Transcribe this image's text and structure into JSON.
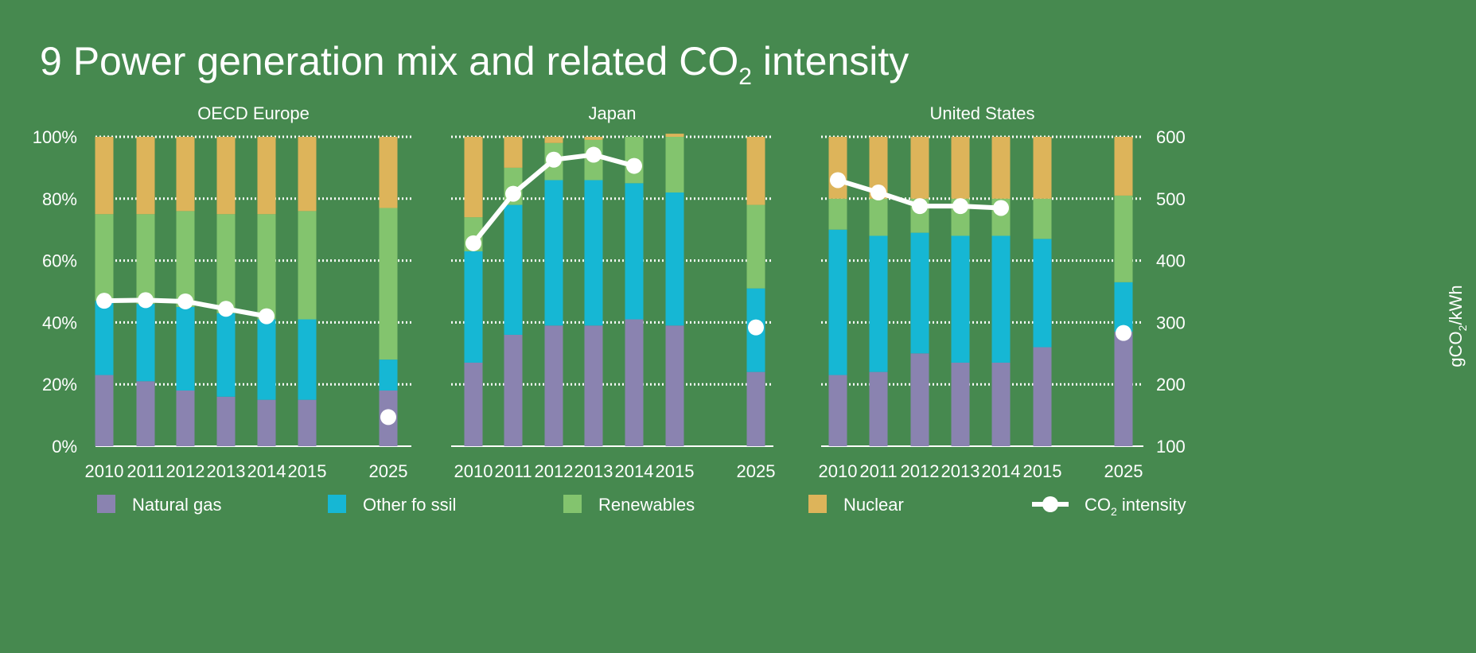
{
  "title": {
    "main": "9 Power generation mix and related CO",
    "sub": "2",
    "tail": " intensity"
  },
  "colors": {
    "background": "#46894f",
    "natural_gas": "#8a83b0",
    "other_fossil": "#16b7d4",
    "renewables": "#83c46e",
    "nuclear": "#ddb45a",
    "co2_intensity": "#ffffff",
    "text": "#ffffff"
  },
  "y_axis_left": {
    "ticks": [
      "0%",
      "20%",
      "40%",
      "60%",
      "80%",
      "100%"
    ]
  },
  "y_axis_right": {
    "ticks": [
      "100",
      "200",
      "300",
      "400",
      "500",
      "600"
    ],
    "label_main": "gCO",
    "label_sub": "2",
    "label_tail": "/kWh"
  },
  "legend": [
    {
      "key": "natural_gas",
      "label": "Natural gas",
      "type": "square"
    },
    {
      "key": "other_fossil",
      "label": "Other fo ssil",
      "type": "square"
    },
    {
      "key": "renewables",
      "label": "Renewables",
      "type": "square"
    },
    {
      "key": "nuclear",
      "label": "Nuclear",
      "type": "square"
    },
    {
      "key": "co2_intensity",
      "label_main": "CO",
      "label_sub": "2",
      "label_tail": " intensity",
      "type": "line"
    }
  ],
  "chart_data": [
    {
      "type": "bar",
      "stacked": true,
      "title": "OECD Europe",
      "categories": [
        "2010",
        "2011",
        "2012",
        "2013",
        "2014",
        "2015",
        "2025"
      ],
      "ylim": [
        0,
        100
      ],
      "y2lim": [
        100,
        600
      ],
      "series": [
        {
          "name": "Natural gas",
          "values": [
            23,
            21,
            18,
            16,
            15,
            15,
            18
          ]
        },
        {
          "name": "Other fossil",
          "values": [
            24,
            25,
            27,
            27,
            26,
            26,
            10
          ]
        },
        {
          "name": "Renewables",
          "values": [
            28,
            29,
            31,
            32,
            34,
            35,
            49
          ]
        },
        {
          "name": "Nuclear",
          "values": [
            25,
            25,
            24,
            25,
            25,
            24,
            23
          ]
        }
      ],
      "line": {
        "name": "CO2 intensity",
        "values": [
          335,
          336,
          334,
          322,
          310,
          null,
          147
        ]
      }
    },
    {
      "type": "bar",
      "stacked": true,
      "title": "Japan",
      "categories": [
        "2010",
        "2011",
        "2012",
        "2013",
        "2014",
        "2015",
        "2025"
      ],
      "ylim": [
        0,
        100
      ],
      "y2lim": [
        100,
        600
      ],
      "series": [
        {
          "name": "Natural gas",
          "values": [
            27,
            36,
            39,
            39,
            41,
            39,
            24
          ]
        },
        {
          "name": "Other fossil",
          "values": [
            36,
            42,
            47,
            47,
            44,
            43,
            27
          ]
        },
        {
          "name": "Renewables",
          "values": [
            11,
            12,
            12,
            13,
            15,
            18,
            27
          ]
        },
        {
          "name": "Nuclear",
          "values": [
            26,
            10,
            2,
            1,
            0,
            1,
            22
          ]
        }
      ],
      "line": {
        "name": "CO2 intensity",
        "values": [
          428,
          508,
          563,
          571,
          553,
          null,
          292
        ]
      }
    },
    {
      "type": "bar",
      "stacked": true,
      "title": "United States",
      "categories": [
        "2010",
        "2011",
        "2012",
        "2013",
        "2014",
        "2015",
        "2025"
      ],
      "ylim": [
        0,
        100
      ],
      "y2lim": [
        100,
        600
      ],
      "series": [
        {
          "name": "Natural gas",
          "values": [
            23,
            24,
            30,
            27,
            27,
            32,
            37
          ]
        },
        {
          "name": "Other fossil",
          "values": [
            47,
            44,
            39,
            41,
            41,
            35,
            16
          ]
        },
        {
          "name": "Renewables",
          "values": [
            10,
            12,
            11,
            12,
            12,
            13,
            28
          ]
        },
        {
          "name": "Nuclear",
          "values": [
            20,
            20,
            20,
            20,
            20,
            20,
            19
          ]
        }
      ],
      "line": {
        "name": "CO2 intensity",
        "values": [
          530,
          510,
          488,
          488,
          485,
          null,
          283
        ]
      }
    }
  ]
}
